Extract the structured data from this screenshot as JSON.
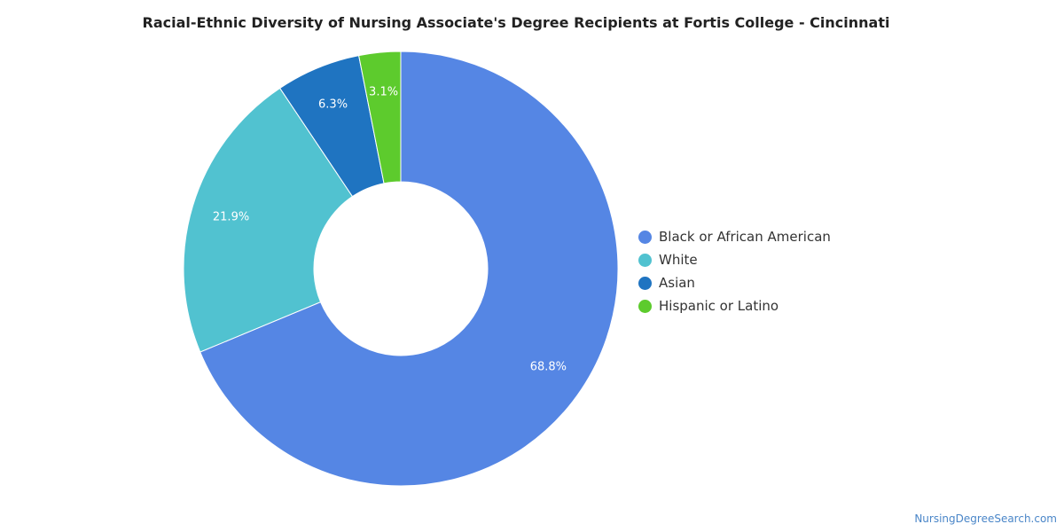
{
  "chart_data": {
    "type": "pie",
    "title": "Racial-Ethnic Diversity of Nursing Associate's Degree Recipients at Fortis College - Cincinnati",
    "categories": [
      "Black or African American",
      "White",
      "Asian",
      "Hispanic or Latino"
    ],
    "values": [
      68.8,
      21.9,
      6.3,
      3.1
    ],
    "labels": [
      "68.8%",
      "21.9%",
      "6.3%",
      "3.1%"
    ],
    "colors": [
      "#5586e4",
      "#51c2d0",
      "#1f74c1",
      "#5dcb2d"
    ],
    "donut": true,
    "legend_position": "right"
  },
  "watermark": "NursingDegreeSearch.com"
}
